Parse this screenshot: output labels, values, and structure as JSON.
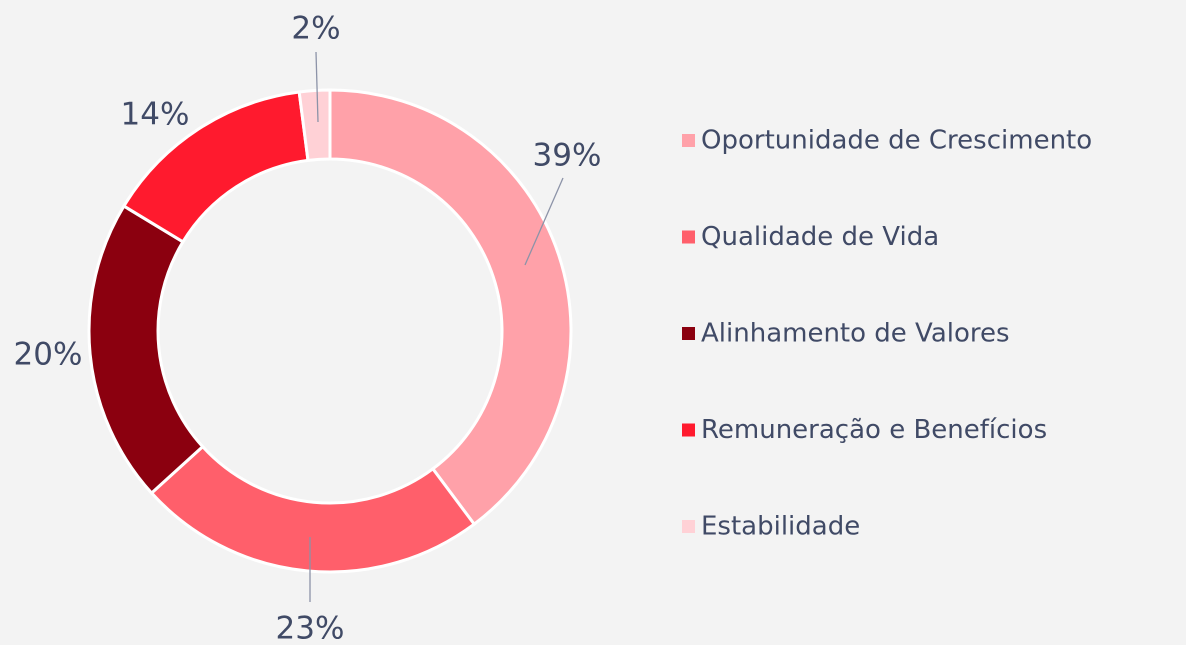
{
  "chart_data": {
    "type": "donut",
    "categories": [
      "Oportunidade de Crescimento",
      "Qualidade de Vida",
      "Alinhamento de Valores",
      "Remuneração e Benefícios",
      "Estabilidade"
    ],
    "values": [
      39,
      23,
      20,
      14,
      2
    ],
    "value_labels": [
      "39%",
      "23%",
      "20%",
      "14%",
      "2%"
    ],
    "colors": [
      "#ffa1a9",
      "#ff5f6b",
      "#8b000f",
      "#ff1a2e",
      "#ffd1d6"
    ],
    "legend": "right"
  }
}
